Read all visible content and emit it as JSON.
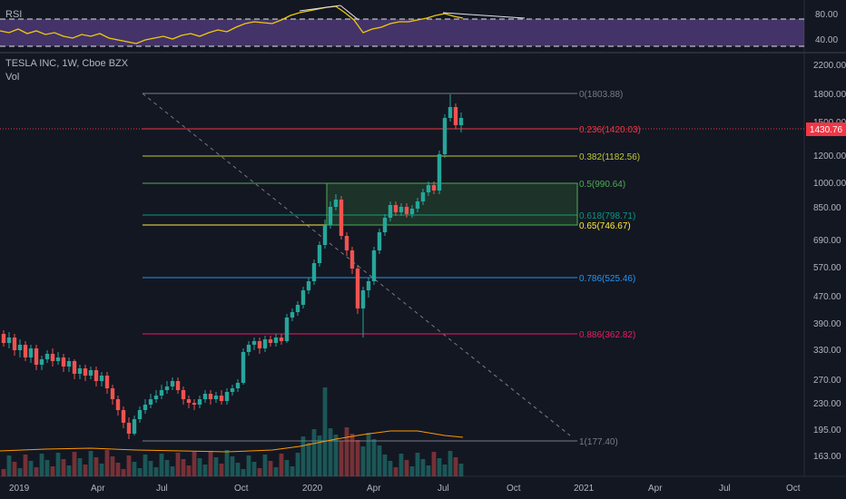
{
  "panes": {
    "rsi": {
      "label": "RSI",
      "ticks": [
        "80.00",
        "40.00"
      ]
    },
    "main": {
      "symbol_title": "TESLA INC, 1W, Cboe BZX",
      "vol_label": "Vol"
    }
  },
  "price_axis": {
    "ticks": [
      "2200.00",
      "1800.00",
      "1500.00",
      "1200.00",
      "1000.00",
      "850.00",
      "690.00",
      "570.00",
      "470.00",
      "390.00",
      "330.00",
      "270.00",
      "230.00",
      "195.00",
      "163.00"
    ],
    "current_price": "1430.76",
    "current_price_color": "#f23645"
  },
  "time_axis": {
    "ticks": [
      "2019",
      "Apr",
      "Jul",
      "Oct",
      "2020",
      "Apr",
      "Jul",
      "Oct",
      "2021",
      "Apr",
      "Jul",
      "Oct"
    ]
  },
  "fib_levels": [
    {
      "label": "0(1803.88)",
      "color": "#787b86"
    },
    {
      "label": "0.236(1420.03)",
      "color": "#f23645"
    },
    {
      "label": "0.382(1182.56)",
      "color": "#c0ca33"
    },
    {
      "label": "0.5(990.64)",
      "color": "#4caf50"
    },
    {
      "label": "0.618(798.71)",
      "color": "#089981"
    },
    {
      "label": "0.65(746.67)",
      "color": "#ffeb3b"
    },
    {
      "label": "0.786(525.46)",
      "color": "#2196f3"
    },
    {
      "label": "0.886(362.82)",
      "color": "#e91e63"
    },
    {
      "label": "1(177.40)",
      "color": "#787b86"
    }
  ],
  "colors": {
    "up": "#26a69a",
    "down": "#ef5350",
    "rsi_line": "#f0c808",
    "rsi_band": "#7e57c2",
    "background": "#131722"
  }
}
